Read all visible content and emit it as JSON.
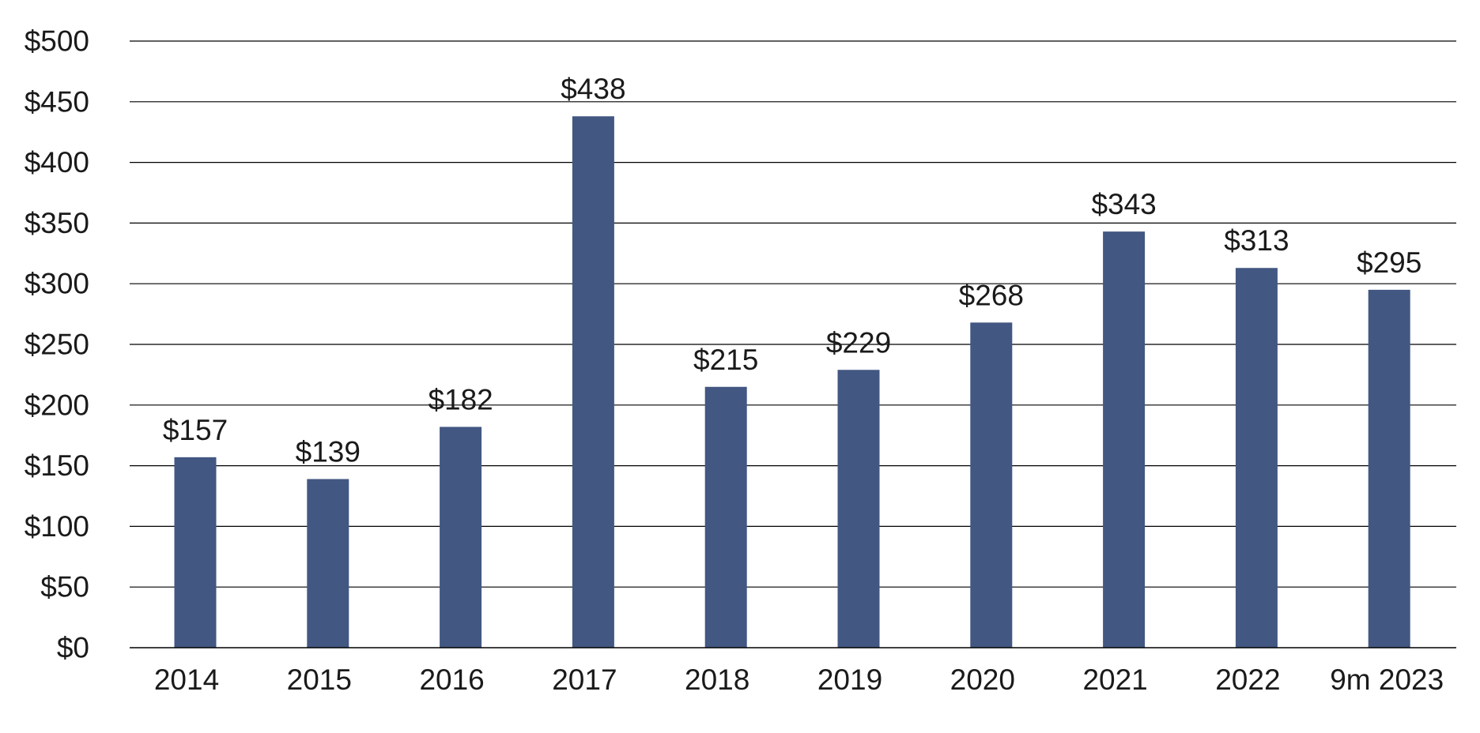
{
  "chart_data": {
    "type": "bar",
    "title": "",
    "xlabel": "",
    "ylabel": "",
    "categories": [
      "2014",
      "2015",
      "2016",
      "2017",
      "2018",
      "2019",
      "2020",
      "2021",
      "2022",
      "9m 2023"
    ],
    "values": [
      157,
      139,
      182,
      438,
      215,
      229,
      268,
      343,
      313,
      295
    ],
    "data_labels": [
      "$157",
      "$139",
      "$182",
      "$438",
      "$215",
      "$229",
      "$268",
      "$343",
      "$313",
      "$295"
    ],
    "ylim": [
      0,
      500
    ],
    "y_ticks": [
      0,
      50,
      100,
      150,
      200,
      250,
      300,
      350,
      400,
      450,
      500
    ],
    "y_tick_labels": [
      "$0",
      "$50",
      "$100",
      "$150",
      "$200",
      "$250",
      "$300",
      "$350",
      "$400",
      "$450",
      "$500"
    ],
    "grid": true,
    "legend": "none",
    "bar_color": "#425782"
  }
}
